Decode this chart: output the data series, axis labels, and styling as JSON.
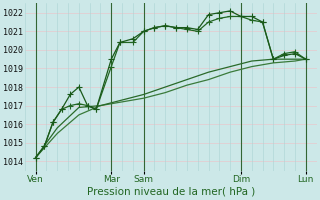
{
  "xlabel": "Pression niveau de la mer( hPa )",
  "ylim": [
    1013.5,
    1022.5
  ],
  "xlim": [
    0.0,
    13.5
  ],
  "yticks": [
    1014,
    1015,
    1016,
    1017,
    1018,
    1019,
    1020,
    1021,
    1022
  ],
  "xtick_positions": [
    0.5,
    4.0,
    5.5,
    10.0,
    13.0
  ],
  "xtick_labels": [
    "Ven",
    "Mar",
    "Sam",
    "Dim",
    "Lun"
  ],
  "vline_positions": [
    0.5,
    4.0,
    5.5,
    10.0,
    13.0
  ],
  "bg_color": "#cce8e8",
  "grid_color_h": "#e8c8cc",
  "grid_color_v": "#aad4d4",
  "dark_vline_color": "#336633",
  "series_jagged1": {
    "x": [
      0.5,
      0.9,
      1.3,
      1.7,
      2.1,
      2.5,
      2.9,
      3.3,
      4.0,
      4.4,
      5.0,
      5.5,
      6.0,
      6.5,
      7.0,
      7.5,
      8.0,
      8.5,
      9.0,
      9.5,
      10.0,
      10.5,
      11.0,
      11.5,
      12.0,
      12.5,
      13.0
    ],
    "y": [
      1014.2,
      1014.8,
      1016.1,
      1016.8,
      1017.0,
      1017.1,
      1017.0,
      1016.8,
      1019.1,
      1020.4,
      1020.4,
      1021.0,
      1021.2,
      1021.3,
      1021.2,
      1021.1,
      1021.0,
      1021.5,
      1021.7,
      1021.8,
      1021.8,
      1021.6,
      1021.5,
      1019.5,
      1019.8,
      1019.9,
      1019.5
    ],
    "color": "#226622",
    "lw": 0.9,
    "marker": "+",
    "ms": 4.0
  },
  "series_jagged2": {
    "x": [
      0.5,
      0.9,
      1.3,
      1.7,
      2.1,
      2.5,
      2.9,
      3.3,
      4.0,
      4.4,
      5.0,
      5.5,
      6.0,
      6.5,
      7.0,
      7.5,
      8.0,
      8.5,
      9.0,
      9.5,
      10.0,
      10.5,
      11.0,
      11.5,
      12.0,
      12.5,
      13.0
    ],
    "y": [
      1014.2,
      1014.8,
      1016.1,
      1016.8,
      1017.6,
      1018.0,
      1017.0,
      1016.8,
      1019.5,
      1020.4,
      1020.6,
      1021.0,
      1021.2,
      1021.3,
      1021.2,
      1021.2,
      1021.1,
      1021.9,
      1022.0,
      1022.1,
      1021.8,
      1021.8,
      1021.5,
      1019.5,
      1019.7,
      1019.8,
      1019.5
    ],
    "color": "#1a5a1a",
    "lw": 0.9,
    "marker": "+",
    "ms": 4.0
  },
  "series_smooth1": {
    "x": [
      0.5,
      1.5,
      2.5,
      3.5,
      4.5,
      5.5,
      6.5,
      7.5,
      8.5,
      9.5,
      10.5,
      11.5,
      12.5,
      13.0
    ],
    "y": [
      1014.2,
      1015.8,
      1016.9,
      1017.0,
      1017.3,
      1017.6,
      1018.0,
      1018.4,
      1018.8,
      1019.1,
      1019.4,
      1019.5,
      1019.5,
      1019.5
    ],
    "color": "#2a6a2a",
    "lw": 0.9,
    "marker": null,
    "ms": 0,
    "linestyle": "-"
  },
  "series_smooth2": {
    "x": [
      0.5,
      1.5,
      2.5,
      3.5,
      4.5,
      5.5,
      6.5,
      7.5,
      8.5,
      9.5,
      10.5,
      11.5,
      12.5,
      13.0
    ],
    "y": [
      1014.2,
      1015.5,
      1016.5,
      1017.0,
      1017.2,
      1017.4,
      1017.7,
      1018.1,
      1018.4,
      1018.8,
      1019.1,
      1019.3,
      1019.4,
      1019.5
    ],
    "color": "#3a7a3a",
    "lw": 0.9,
    "marker": null,
    "ms": 0,
    "linestyle": "-"
  }
}
